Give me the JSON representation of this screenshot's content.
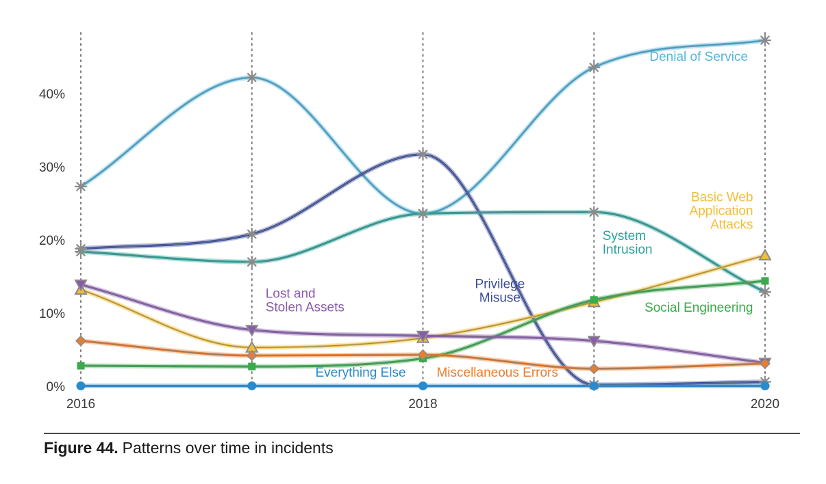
{
  "figure": {
    "number_label": "Figure 44.",
    "caption": "Patterns over time in incidents"
  },
  "chart_data": {
    "type": "line",
    "title": "",
    "xlabel": "",
    "ylabel": "",
    "x": [
      2016,
      2017,
      2018,
      2019,
      2020
    ],
    "x_tick_labels": [
      "2016",
      "2018",
      "2020"
    ],
    "y_tick_labels": [
      "0%",
      "10%",
      "20%",
      "30%",
      "40%"
    ],
    "y_ticks": [
      0,
      10,
      20,
      30,
      40
    ],
    "xlim": [
      2016,
      2020
    ],
    "ylim": [
      0,
      48
    ],
    "grid": "vertical dotted lines at each year",
    "series": [
      {
        "name": "Denial of Service",
        "label_lines": [
          "Denial of Service"
        ],
        "label_anchor": [
          2019.9,
          44.5
        ],
        "label_align": "end",
        "color": "#55b5dc",
        "marker": "asterisk",
        "values": [
          27.3,
          42.2,
          23.6,
          43.6,
          47.3
        ]
      },
      {
        "name": "Privilege Misuse",
        "label_lines": [
          "Privilege",
          "Misuse"
        ],
        "label_anchor": [
          2018.45,
          13.4
        ],
        "label_align": "middle",
        "color": "#3a4a9a",
        "marker": "asterisk",
        "values": [
          18.8,
          20.8,
          31.7,
          0.2,
          0.6
        ]
      },
      {
        "name": "System Intrusion",
        "label_lines": [
          "System",
          "Intrusion"
        ],
        "label_anchor": [
          2019.05,
          20.0
        ],
        "label_align": "start",
        "color": "#2aa29a",
        "marker": "star",
        "values": [
          18.4,
          17.0,
          23.6,
          23.8,
          12.9
        ]
      },
      {
        "name": "Basic Web Application Attacks",
        "label_lines": [
          "Basic Web",
          "Application",
          "Attacks"
        ],
        "label_anchor": [
          2019.93,
          25.3
        ],
        "label_align": "end",
        "color": "#f2bd3b",
        "marker": "triangle-up",
        "values": [
          13.2,
          5.3,
          6.6,
          11.5,
          17.9
        ]
      },
      {
        "name": "Social Engineering",
        "label_lines": [
          "Social Engineering"
        ],
        "label_anchor": [
          2019.93,
          10.2
        ],
        "label_align": "end",
        "color": "#3aaa4a",
        "marker": "square",
        "values": [
          2.8,
          2.7,
          3.8,
          11.8,
          14.4
        ]
      },
      {
        "name": "Lost and Stolen Assets",
        "label_lines": [
          "Lost and",
          "Stolen Assets"
        ],
        "label_anchor": [
          2017.08,
          12.1
        ],
        "label_align": "start",
        "color": "#8a5aac",
        "marker": "triangle-down",
        "values": [
          13.9,
          7.7,
          6.9,
          6.2,
          3.2
        ]
      },
      {
        "name": "Miscellaneous Errors",
        "label_lines": [
          "Miscellaneous Errors"
        ],
        "label_anchor": [
          2018.08,
          1.3
        ],
        "label_align": "start",
        "color": "#ea7d2e",
        "marker": "diamond",
        "values": [
          6.2,
          4.2,
          4.3,
          2.4,
          3.1
        ]
      },
      {
        "name": "Everything Else",
        "label_lines": [
          "Everything Else"
        ],
        "label_anchor": [
          2017.9,
          1.3
        ],
        "label_align": "end",
        "color": "#2a8ad0",
        "marker": "circle",
        "values": [
          0.05,
          0.05,
          0.05,
          0.05,
          0.05
        ]
      }
    ]
  }
}
